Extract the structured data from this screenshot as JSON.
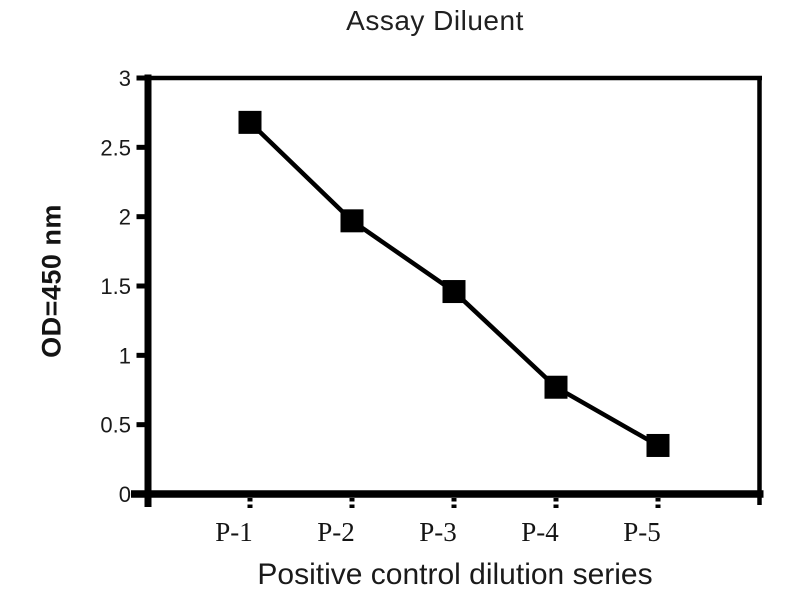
{
  "chart_data": {
    "type": "line",
    "title": "Assay Diluent",
    "xlabel": "Positive control dilution series",
    "ylabel": "OD=450 nm",
    "categories": [
      "P-1",
      "P-2",
      "P-3",
      "P-4",
      "P-5"
    ],
    "series": [
      {
        "name": "Positive control dilution series",
        "values": [
          2.68,
          1.97,
          1.46,
          0.77,
          0.35
        ]
      }
    ],
    "ylim": [
      0,
      3
    ],
    "yticks": [
      {
        "value": 0,
        "label": "0"
      },
      {
        "value": 0.5,
        "label": "0.5"
      },
      {
        "value": 1,
        "label": "1"
      },
      {
        "value": 1.5,
        "label": "1.5"
      },
      {
        "value": 2,
        "label": "2"
      },
      {
        "value": 2.5,
        "label": "2.5"
      },
      {
        "value": 3,
        "label": "3"
      }
    ],
    "grid": false,
    "legend": "none",
    "marker": "square",
    "line_color": "#000000",
    "marker_color": "#000000",
    "axis_color": "#000000",
    "background_color": "#ffffff"
  }
}
